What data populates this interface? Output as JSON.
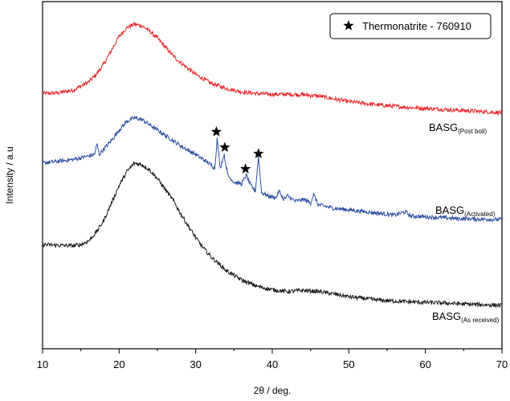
{
  "chart_data": {
    "type": "line",
    "xlabel": "2θ / deg.",
    "ylabel": "Intensity / a.u",
    "xlim": [
      10,
      70
    ],
    "x_ticks": [
      10,
      20,
      30,
      40,
      50,
      60,
      70
    ],
    "y_ticks_shown": false,
    "grid": false,
    "legend": {
      "placement": "top-right",
      "marker": "star",
      "label": "Thermonatrite - 760910"
    },
    "series": [
      {
        "name": "BASG(Post boil)",
        "label_main": "BASG",
        "label_sub": "(Post boil)",
        "color": "#e8262b",
        "x": [
          10,
          12,
          14,
          16,
          17,
          18,
          19,
          20,
          21,
          22,
          23,
          24,
          25,
          26,
          27,
          28,
          30,
          32,
          34,
          36,
          38,
          40,
          42,
          44,
          46,
          48,
          50,
          54,
          58,
          62,
          66,
          70
        ],
        "y": [
          0.735,
          0.737,
          0.745,
          0.768,
          0.79,
          0.82,
          0.86,
          0.9,
          0.925,
          0.935,
          0.93,
          0.915,
          0.895,
          0.87,
          0.845,
          0.825,
          0.79,
          0.765,
          0.75,
          0.74,
          0.735,
          0.733,
          0.733,
          0.732,
          0.728,
          0.72,
          0.712,
          0.702,
          0.695,
          0.69,
          0.685,
          0.68
        ]
      },
      {
        "name": "BASG(Activated)",
        "label_main": "BASG",
        "label_sub": "(Activated)",
        "color": "#2c4ea3",
        "x": [
          10,
          12,
          14,
          16,
          16.8,
          17.1,
          17.4,
          18,
          19,
          20,
          21,
          22,
          23,
          24,
          25,
          26,
          27,
          28,
          29,
          30,
          31,
          32,
          32.5,
          32.8,
          33.2,
          33.7,
          34.2,
          35,
          36,
          36.6,
          37.2,
          37.8,
          38.2,
          38.6,
          39.5,
          40.5,
          40.9,
          41.5,
          42,
          43,
          44.2,
          45,
          45.4,
          46,
          48,
          50,
          52,
          54,
          56,
          57.4,
          58,
          60,
          62,
          64,
          66,
          68,
          70
        ],
        "y": [
          0.535,
          0.54,
          0.545,
          0.555,
          0.56,
          0.59,
          0.56,
          0.575,
          0.6,
          0.63,
          0.655,
          0.665,
          0.66,
          0.645,
          0.63,
          0.615,
          0.6,
          0.585,
          0.572,
          0.56,
          0.545,
          0.53,
          0.52,
          0.605,
          0.52,
          0.56,
          0.5,
          0.48,
          0.475,
          0.5,
          0.47,
          0.455,
          0.555,
          0.45,
          0.44,
          0.435,
          0.455,
          0.43,
          0.44,
          0.425,
          0.43,
          0.42,
          0.445,
          0.415,
          0.405,
          0.4,
          0.395,
          0.39,
          0.385,
          0.395,
          0.383,
          0.38,
          0.378,
          0.375,
          0.374,
          0.373,
          0.372
        ]
      },
      {
        "name": "BASG(As received)",
        "label_main": "BASG",
        "label_sub": "(As received)",
        "color": "#1a1a1a",
        "x": [
          10,
          12,
          14,
          15,
          16,
          17,
          18,
          19,
          20,
          21,
          22,
          23,
          24,
          25,
          26,
          27,
          28,
          29,
          30,
          31,
          32,
          34,
          36,
          38,
          40,
          42,
          44,
          46,
          48,
          50,
          54,
          58,
          62,
          66,
          70
        ],
        "y": [
          0.3,
          0.298,
          0.297,
          0.3,
          0.31,
          0.335,
          0.37,
          0.42,
          0.47,
          0.51,
          0.535,
          0.53,
          0.515,
          0.49,
          0.46,
          0.43,
          0.39,
          0.355,
          0.32,
          0.29,
          0.265,
          0.225,
          0.198,
          0.18,
          0.17,
          0.165,
          0.168,
          0.165,
          0.158,
          0.15,
          0.14,
          0.135,
          0.132,
          0.128,
          0.125
        ]
      }
    ],
    "markers": [
      {
        "type": "star",
        "x": 32.7,
        "y": 0.625
      },
      {
        "type": "star",
        "x": 33.8,
        "y": 0.58
      },
      {
        "type": "star",
        "x": 36.5,
        "y": 0.518
      },
      {
        "type": "star",
        "x": 38.2,
        "y": 0.562
      }
    ]
  }
}
